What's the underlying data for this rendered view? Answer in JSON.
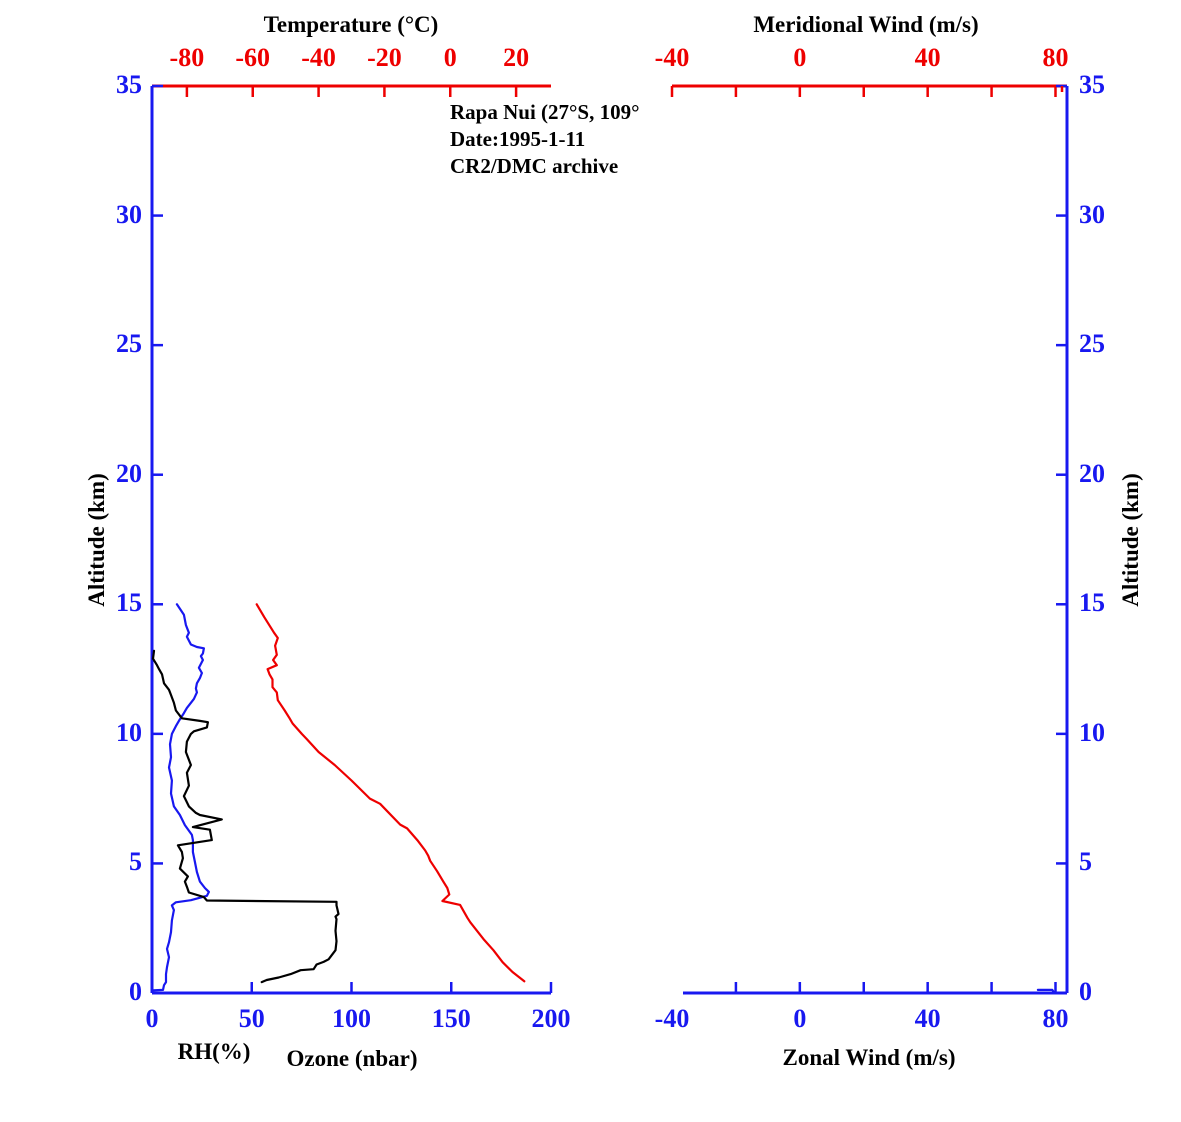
{
  "colors": {
    "red": "#ee0000",
    "blue": "#1818f0",
    "black": "#000000",
    "background": "#ffffff"
  },
  "annotation": {
    "lines": [
      "Rapa Nui (27°S, 109°",
      "Date:1995-1-11",
      "CR2/DMC archive"
    ]
  },
  "chart_data": [
    {
      "id": "left-panel",
      "type": "line",
      "top_axis": {
        "label": "Temperature (°C)",
        "color": "red",
        "ticks": [
          -80,
          -60,
          -40,
          -20,
          0,
          20
        ],
        "minor_ticks": [],
        "range_at_edges": [
          -90.6,
          30.6
        ]
      },
      "bottom_axis": {
        "label": "Ozone (nbar)",
        "secondary_label": "RH(%)",
        "color": "blue",
        "ticks": [
          0,
          50,
          100,
          150,
          200
        ],
        "minor_ticks": [],
        "range_at_edges": [
          0,
          200
        ]
      },
      "left_axis": {
        "label": "Altitude (km)",
        "color": "blue",
        "ticks": [
          0,
          5,
          10,
          15,
          20,
          25,
          30,
          35
        ],
        "range": [
          0,
          35
        ]
      },
      "series": [
        {
          "name": "temperature",
          "axis": "top",
          "color": "red",
          "points": [
            [
              -58.8,
              15.0
            ],
            [
              -56.5,
              14.5
            ],
            [
              -53.5,
              13.9
            ],
            [
              -52.4,
              13.7
            ],
            [
              -53.2,
              13.4
            ],
            [
              -52.7,
              13.05
            ],
            [
              -53.8,
              12.85
            ],
            [
              -52.7,
              12.65
            ],
            [
              -55.5,
              12.5
            ],
            [
              -54.9,
              12.3
            ],
            [
              -54,
              12.1
            ],
            [
              -54,
              11.8
            ],
            [
              -52.7,
              11.6
            ],
            [
              -52.4,
              11.3
            ],
            [
              -50.3,
              10.9
            ],
            [
              -48.8,
              10.6
            ],
            [
              -47.9,
              10.4
            ],
            [
              -45.1,
              10.0
            ],
            [
              -43.6,
              9.8
            ],
            [
              -40,
              9.3
            ],
            [
              -35.1,
              8.8
            ],
            [
              -30,
              8.2
            ],
            [
              -24.4,
              7.5
            ],
            [
              -21.3,
              7.3
            ],
            [
              -15.2,
              6.5
            ],
            [
              -13.1,
              6.35
            ],
            [
              -10,
              5.9
            ],
            [
              -7.6,
              5.5
            ],
            [
              -6.7,
              5.3
            ],
            [
              -6.1,
              5.1
            ],
            [
              -4,
              4.7
            ],
            [
              -2.1,
              4.3
            ],
            [
              -0.9,
              4.05
            ],
            [
              -0.3,
              3.8
            ],
            [
              -2.4,
              3.55
            ],
            [
              3,
              3.4
            ],
            [
              5.2,
              2.9
            ],
            [
              6.1,
              2.73
            ],
            [
              10.1,
              2.08
            ],
            [
              13.1,
              1.65
            ],
            [
              15.9,
              1.19
            ],
            [
              18.9,
              0.81
            ],
            [
              22.5,
              0.45
            ]
          ]
        },
        {
          "name": "ozone",
          "axis": "bottom",
          "color": "blue",
          "points": [
            [
              12.5,
              15.0
            ],
            [
              16,
              14.6
            ],
            [
              17,
              14.2
            ],
            [
              18.5,
              13.9
            ],
            [
              17.5,
              13.75
            ],
            [
              19.5,
              13.45
            ],
            [
              22.5,
              13.35
            ],
            [
              26,
              13.3
            ],
            [
              25.5,
              13.1
            ],
            [
              24.5,
              13.0
            ],
            [
              25.5,
              12.85
            ],
            [
              23.5,
              12.55
            ],
            [
              25,
              12.35
            ],
            [
              24,
              12.15
            ],
            [
              22.5,
              11.95
            ],
            [
              22,
              11.75
            ],
            [
              22.5,
              11.6
            ],
            [
              21,
              11.35
            ],
            [
              19.5,
              11.2
            ],
            [
              17.5,
              11.0
            ],
            [
              16,
              10.8
            ],
            [
              13.5,
              10.5
            ],
            [
              12,
              10.3
            ],
            [
              10,
              10.0
            ],
            [
              9,
              9.6
            ],
            [
              9.5,
              9.1
            ],
            [
              8.5,
              8.7
            ],
            [
              10,
              8.2
            ],
            [
              9.5,
              7.7
            ],
            [
              11,
              7.2
            ],
            [
              14,
              6.87
            ],
            [
              16.5,
              6.48
            ],
            [
              20,
              6.1
            ],
            [
              20.5,
              5.9
            ],
            [
              20.5,
              5.44
            ],
            [
              21.5,
              5.06
            ],
            [
              22.5,
              4.67
            ],
            [
              24,
              4.3
            ],
            [
              26.5,
              4.05
            ],
            [
              28.5,
              3.9
            ],
            [
              27.5,
              3.75
            ],
            [
              19.5,
              3.58
            ],
            [
              12,
              3.5
            ],
            [
              10,
              3.38
            ],
            [
              11,
              3.2
            ],
            [
              10,
              2.8
            ],
            [
              9.5,
              2.35
            ],
            [
              8.5,
              1.96
            ],
            [
              7.5,
              1.7
            ],
            [
              8.5,
              1.38
            ],
            [
              7.5,
              1.0
            ],
            [
              7,
              0.73
            ],
            [
              7,
              0.42
            ],
            [
              6,
              0.3
            ],
            [
              5.5,
              0.12
            ],
            [
              0.5,
              0.1
            ]
          ]
        },
        {
          "name": "relative-humidity",
          "axis": "bottom",
          "color": "black",
          "points": [
            [
              1,
              13.2
            ],
            [
              0.5,
              12.9
            ],
            [
              2.5,
              12.65
            ],
            [
              3.5,
              12.5
            ],
            [
              5,
              12.3
            ],
            [
              6,
              11.95
            ],
            [
              8.5,
              11.7
            ],
            [
              9.5,
              11.5
            ],
            [
              11,
              11.2
            ],
            [
              12,
              10.9
            ],
            [
              15,
              10.6
            ],
            [
              24,
              10.5
            ],
            [
              28,
              10.45
            ],
            [
              27.5,
              10.25
            ],
            [
              21,
              10.1
            ],
            [
              19.5,
              10.0
            ],
            [
              17.5,
              9.7
            ],
            [
              17,
              9.3
            ],
            [
              19.5,
              8.8
            ],
            [
              17.5,
              8.5
            ],
            [
              18.5,
              8.0
            ],
            [
              16,
              7.6
            ],
            [
              18.5,
              7.2
            ],
            [
              22,
              6.95
            ],
            [
              24,
              6.87
            ],
            [
              35,
              6.7
            ],
            [
              20.5,
              6.4
            ],
            [
              29,
              6.3
            ],
            [
              30,
              5.9
            ],
            [
              13,
              5.7
            ],
            [
              15,
              5.44
            ],
            [
              15.5,
              5.2
            ],
            [
              14,
              4.8
            ],
            [
              18,
              4.5
            ],
            [
              16.5,
              4.3
            ],
            [
              17.5,
              4.1
            ],
            [
              18.5,
              3.88
            ],
            [
              26,
              3.7
            ],
            [
              27.5,
              3.57
            ],
            [
              92.5,
              3.52
            ],
            [
              92.5,
              3.38
            ],
            [
              93.5,
              3.05
            ],
            [
              92,
              2.95
            ],
            [
              92.5,
              2.85
            ],
            [
              92,
              2.4
            ],
            [
              92.5,
              2.0
            ],
            [
              92,
              1.65
            ],
            [
              88.5,
              1.3
            ],
            [
              86,
              1.2
            ],
            [
              82.5,
              1.1
            ],
            [
              81,
              0.92
            ],
            [
              74.5,
              0.88
            ],
            [
              69.5,
              0.73
            ],
            [
              63.5,
              0.6
            ],
            [
              57.5,
              0.5
            ],
            [
              55,
              0.42
            ]
          ]
        }
      ]
    },
    {
      "id": "right-panel",
      "type": "line",
      "top_axis": {
        "label": "Meridional Wind (m/s)",
        "color": "red",
        "ticks": [
          -40,
          0,
          40,
          80
        ],
        "minor_ticks": [
          -20,
          20,
          60
        ],
        "range_at_edges": [
          -40,
          83.6
        ]
      },
      "bottom_axis": {
        "label": "Zonal Wind (m/s)",
        "color": "blue",
        "ticks": [
          -40,
          0,
          40,
          80
        ],
        "minor_ticks": [
          -20,
          20,
          60
        ],
        "range_at_edges": [
          -40,
          83.6
        ]
      },
      "right_axis": {
        "label": "Altitude (km)",
        "color": "blue",
        "ticks": [
          0,
          5,
          10,
          15,
          20,
          25,
          30,
          35
        ],
        "range": [
          0,
          35
        ]
      },
      "series": [
        {
          "name": "zonal-wind",
          "axis": "bottom",
          "color": "blue",
          "points": [
            [
              74.5,
              0.12
            ],
            [
              79,
              0.12
            ],
            [
              79.5,
              0.03
            ]
          ]
        }
      ]
    }
  ]
}
